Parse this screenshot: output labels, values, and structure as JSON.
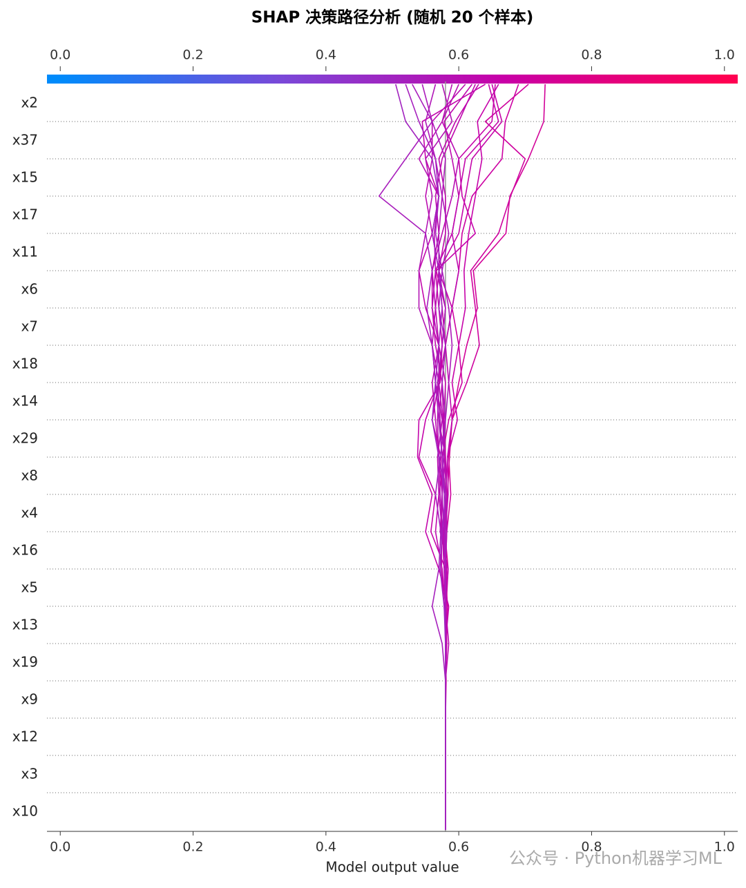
{
  "chart_data": {
    "type": "decision",
    "title": "SHAP 决策路径分析 (随机 20 个样本)",
    "x_label": "Model output value",
    "watermark": "公众号 · Python机器学习ML",
    "xlim": [
      -0.02,
      1.02
    ],
    "xticks": [
      {
        "value": 0,
        "label": "0.0"
      },
      {
        "value": 0.2,
        "label": "0.2"
      },
      {
        "value": 0.4,
        "label": "0.4"
      },
      {
        "value": 0.6,
        "label": "0.6"
      },
      {
        "value": 0.8,
        "label": "0.8"
      },
      {
        "value": 1,
        "label": "1.0"
      }
    ],
    "base_value": 0.58,
    "base_color": "#999999",
    "grid": true,
    "colorbar": {
      "colors": [
        "#008bfb",
        "#7a48d8",
        "#c800a8",
        "#ff0052"
      ],
      "ticks": [
        {
          "value": 0,
          "label": "0.0"
        },
        {
          "value": 0.2,
          "label": "0.2"
        },
        {
          "value": 0.4,
          "label": "0.4"
        },
        {
          "value": 0.6,
          "label": "0.6"
        },
        {
          "value": 0.8,
          "label": "0.8"
        },
        {
          "value": 1,
          "label": "1.0"
        }
      ]
    },
    "features": [
      "x2",
      "x37",
      "x15",
      "x17",
      "x11",
      "x6",
      "x7",
      "x18",
      "x14",
      "x29",
      "x8",
      "x4",
      "x16",
      "x5",
      "x13",
      "x19",
      "x9",
      "x12",
      "x3",
      "x10"
    ],
    "series": [
      {
        "values": [
          0.73,
          0.728,
          0.705,
          0.677,
          0.671,
          0.622,
          0.628,
          0.612,
          0.6,
          0.59,
          0.586,
          0.583,
          0.579,
          0.584,
          0.581,
          0.58,
          0.581,
          0.58,
          0.58,
          0.58,
          0.58
        ]
      },
      {
        "values": [
          0.705,
          0.64,
          0.7,
          0.678,
          0.66,
          0.618,
          0.625,
          0.631,
          0.612,
          0.59,
          0.585,
          0.588,
          0.582,
          0.58,
          0.583,
          0.581,
          0.58,
          0.58,
          0.58,
          0.58,
          0.58
        ]
      },
      {
        "values": [
          0.69,
          0.67,
          0.665,
          0.62,
          0.605,
          0.6,
          0.59,
          0.6,
          0.605,
          0.585,
          0.575,
          0.58,
          0.578,
          0.582,
          0.58,
          0.58,
          0.58,
          0.58,
          0.58,
          0.58,
          0.58
        ]
      },
      {
        "values": [
          0.66,
          0.628,
          0.635,
          0.625,
          0.615,
          0.608,
          0.61,
          0.6,
          0.59,
          0.598,
          0.583,
          0.58,
          0.577,
          0.58,
          0.581,
          0.582,
          0.58,
          0.58,
          0.58,
          0.58,
          0.58
        ]
      },
      {
        "values": [
          0.655,
          0.65,
          0.6,
          0.605,
          0.625,
          0.566,
          0.58,
          0.575,
          0.57,
          0.56,
          0.573,
          0.575,
          0.573,
          0.582,
          0.579,
          0.58,
          0.58,
          0.58,
          0.58,
          0.58,
          0.58
        ]
      },
      {
        "values": [
          0.65,
          0.665,
          0.62,
          0.61,
          0.6,
          0.57,
          0.59,
          0.58,
          0.57,
          0.55,
          0.54,
          0.565,
          0.558,
          0.58,
          0.581,
          0.58,
          0.58,
          0.58,
          0.58,
          0.58,
          0.58
        ]
      },
      {
        "values": [
          0.645,
          0.66,
          0.61,
          0.6,
          0.59,
          0.565,
          0.57,
          0.575,
          0.572,
          0.54,
          0.538,
          0.56,
          0.55,
          0.57,
          0.585,
          0.58,
          0.58,
          0.58,
          0.58,
          0.58,
          0.58
        ]
      },
      {
        "values": [
          0.64,
          0.545,
          0.55,
          0.57,
          0.56,
          0.54,
          0.55,
          0.57,
          0.58,
          0.578,
          0.58,
          0.575,
          0.574,
          0.574,
          0.578,
          0.581,
          0.58,
          0.58,
          0.58,
          0.58,
          0.58
        ]
      },
      {
        "values": [
          0.63,
          0.595,
          0.57,
          0.58,
          0.58,
          0.57,
          0.575,
          0.58,
          0.585,
          0.59,
          0.583,
          0.584,
          0.58,
          0.58,
          0.58,
          0.58,
          0.58,
          0.58,
          0.58,
          0.58,
          0.58
        ]
      },
      {
        "values": [
          0.625,
          0.6,
          0.575,
          0.565,
          0.57,
          0.56,
          0.56,
          0.565,
          0.575,
          0.577,
          0.578,
          0.57,
          0.565,
          0.575,
          0.58,
          0.585,
          0.58,
          0.58,
          0.58,
          0.58,
          0.58
        ]
      },
      {
        "values": [
          0.62,
          0.578,
          0.59,
          0.6,
          0.59,
          0.6,
          0.59,
          0.58,
          0.575,
          0.57,
          0.58,
          0.582,
          0.578,
          0.58,
          0.58,
          0.58,
          0.58,
          0.58,
          0.58,
          0.58,
          0.58
        ]
      },
      {
        "values": [
          0.61,
          0.56,
          0.56,
          0.55,
          0.56,
          0.57,
          0.565,
          0.57,
          0.56,
          0.565,
          0.57,
          0.575,
          0.572,
          0.584,
          0.58,
          0.58,
          0.58,
          0.58,
          0.58,
          0.58,
          0.58
        ]
      },
      {
        "values": [
          0.6,
          0.575,
          0.6,
          0.59,
          0.575,
          0.56,
          0.565,
          0.56,
          0.565,
          0.575,
          0.568,
          0.57,
          0.575,
          0.578,
          0.58,
          0.58,
          0.58,
          0.58,
          0.58,
          0.58,
          0.58
        ]
      },
      {
        "values": [
          0.59,
          0.575,
          0.54,
          0.57,
          0.563,
          0.565,
          0.56,
          0.57,
          0.57,
          0.568,
          0.57,
          0.572,
          0.576,
          0.578,
          0.58,
          0.58,
          0.58,
          0.58,
          0.58,
          0.58,
          0.58
        ]
      },
      {
        "values": [
          0.575,
          0.59,
          0.55,
          0.56,
          0.55,
          0.54,
          0.54,
          0.56,
          0.57,
          0.576,
          0.578,
          0.582,
          0.582,
          0.58,
          0.58,
          0.58,
          0.58,
          0.58,
          0.58,
          0.58,
          0.58
        ]
      },
      {
        "values": [
          0.565,
          0.55,
          0.565,
          0.575,
          0.57,
          0.57,
          0.58,
          0.575,
          0.568,
          0.572,
          0.575,
          0.58,
          0.58,
          0.58,
          0.58,
          0.58,
          0.58,
          0.58,
          0.58,
          0.58,
          0.58
        ]
      },
      {
        "values": [
          0.545,
          0.56,
          0.58,
          0.575,
          0.585,
          0.575,
          0.585,
          0.59,
          0.585,
          0.58,
          0.577,
          0.575,
          0.578,
          0.58,
          0.58,
          0.58,
          0.58,
          0.58,
          0.58,
          0.58,
          0.58
        ]
      },
      {
        "values": [
          0.53,
          0.56,
          0.52,
          0.48,
          0.55,
          0.56,
          0.552,
          0.56,
          0.565,
          0.57,
          0.575,
          0.578,
          0.58,
          0.58,
          0.58,
          0.58,
          0.58,
          0.58,
          0.58,
          0.58,
          0.58
        ]
      },
      {
        "values": [
          0.52,
          0.54,
          0.565,
          0.57,
          0.565,
          0.575,
          0.57,
          0.58,
          0.575,
          0.58,
          0.572,
          0.565,
          0.573,
          0.57,
          0.56,
          0.575,
          0.58,
          0.58,
          0.58,
          0.58,
          0.58
        ]
      },
      {
        "values": [
          0.505,
          0.52,
          0.56,
          0.57,
          0.56,
          0.57,
          0.575,
          0.57,
          0.565,
          0.56,
          0.57,
          0.58,
          0.575,
          0.572,
          0.578,
          0.58,
          0.58,
          0.58,
          0.58,
          0.58,
          0.58
        ]
      }
    ]
  }
}
